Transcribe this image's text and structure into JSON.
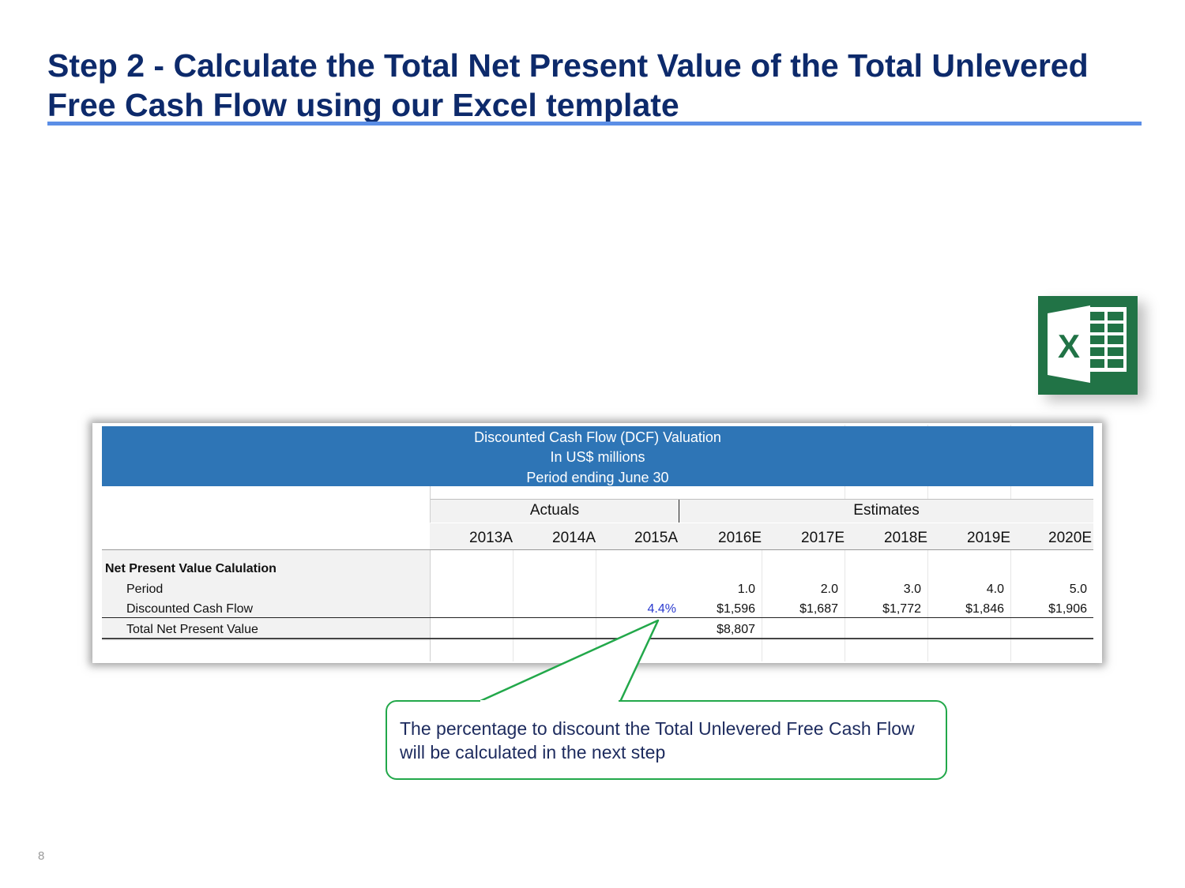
{
  "slide": {
    "title": "Step 2 - Calculate the Total Net Present Value of the Total Unlevered Free Cash Flow using our Excel template",
    "page_number": "8"
  },
  "excel_icon": {
    "icon": "excel-icon",
    "letter": "X",
    "color": "#217346"
  },
  "sheet": {
    "header_lines": [
      "Discounted Cash Flow (DCF) Valuation",
      "In US$ millions",
      "Period ending June 30"
    ],
    "groups": {
      "actuals": "Actuals",
      "estimates": "Estimates"
    },
    "years": [
      "2013A",
      "2014A",
      "2015A",
      "2016E",
      "2017E",
      "2018E",
      "2019E",
      "2020E"
    ],
    "section_title": "Net Present Value Calulation",
    "rows": {
      "period": {
        "label": "Period",
        "values": [
          "",
          "",
          "",
          "1.0",
          "2.0",
          "3.0",
          "4.0",
          "5.0"
        ]
      },
      "dcf": {
        "label": "Discounted Cash Flow",
        "values": [
          "",
          "",
          "4.4%",
          "$1,596",
          "$1,687",
          "$1,772",
          "$1,846",
          "$1,906"
        ]
      },
      "npv": {
        "label": "Total Net Present Value",
        "values": [
          "",
          "",
          "",
          "$8,807",
          "",
          "",
          "",
          ""
        ]
      }
    },
    "highlight_color": "#2b3bcf",
    "header_color": "#2e75b6"
  },
  "callout": {
    "text": "The percentage to discount the Total Unlevered Free Cash Flow will be calculated in the next step",
    "border_color": "#22a84a"
  }
}
